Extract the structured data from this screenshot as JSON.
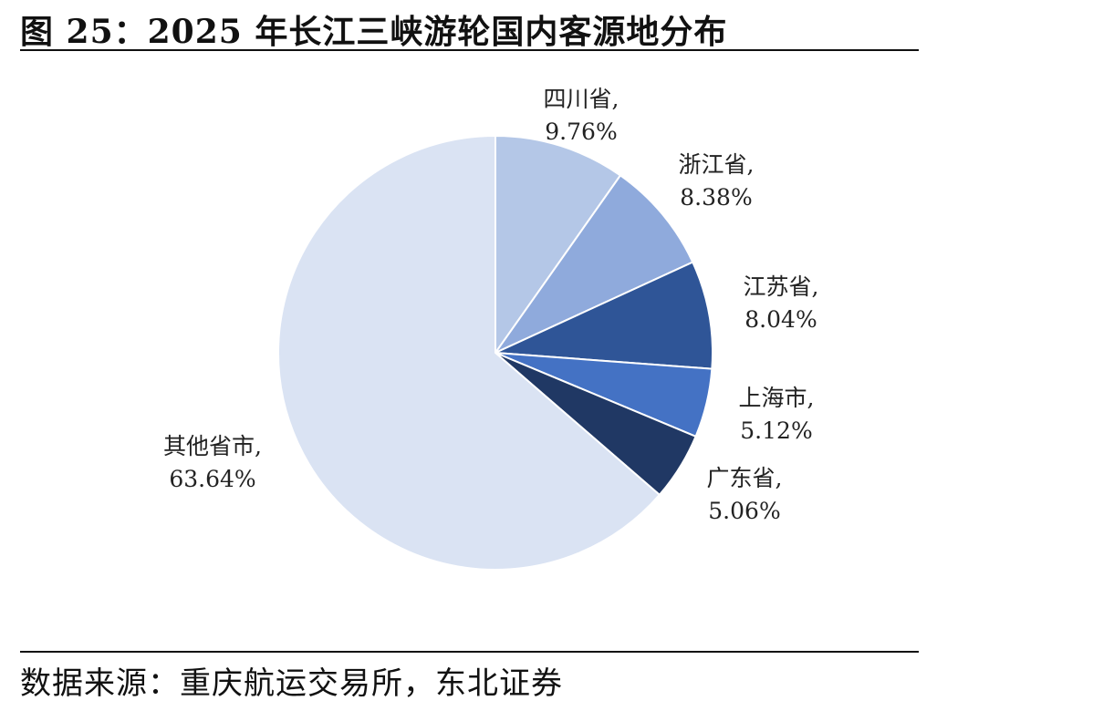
{
  "figure": {
    "title": "图 25：2025 年长江三峡游轮国内客源地分布",
    "source": "数据来源：重庆航运交易所，东北证券"
  },
  "chart_data": {
    "type": "pie",
    "title": "图 25：2025 年长江三峡游轮国内客源地分布",
    "start_angle_deg": 0,
    "direction": "clockwise",
    "categories": [
      "四川省",
      "浙江省",
      "江苏省",
      "上海市",
      "广东省",
      "其他省市"
    ],
    "values": [
      9.76,
      8.38,
      8.04,
      5.12,
      5.06,
      63.64
    ],
    "value_labels": [
      "9.76%",
      "8.38%",
      "8.04%",
      "5.12%",
      "5.06%",
      "63.64%"
    ],
    "colors": [
      "#b4c7e7",
      "#8faadc",
      "#2f5597",
      "#4472c4",
      "#203864",
      "#dae3f3"
    ],
    "label_suffix": ","
  }
}
